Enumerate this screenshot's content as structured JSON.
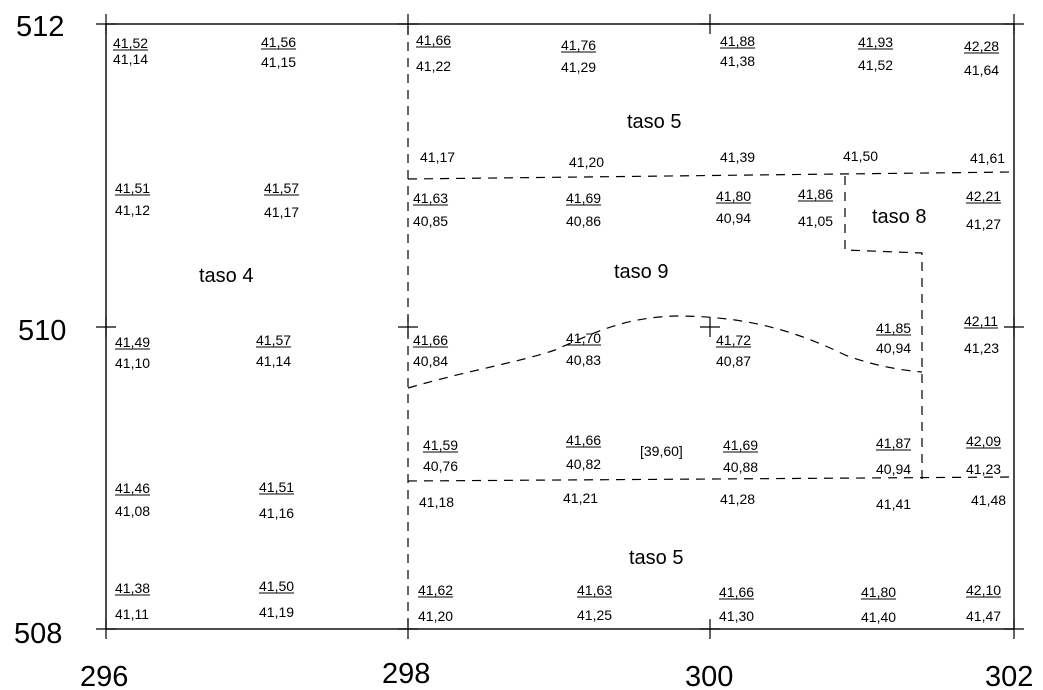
{
  "axes": {
    "y_labels": [
      "512",
      "510",
      "508"
    ],
    "x_labels": [
      "296",
      "298",
      "300",
      "302"
    ]
  },
  "zones": [
    "taso 5",
    "taso 4",
    "taso 9",
    "taso 8",
    "taso 5"
  ],
  "elevations": [
    {
      "top": "41,52",
      "bottom": "41,14"
    },
    {
      "top": "41,56",
      "bottom": "41,15"
    },
    {
      "top": "41,66",
      "bottom": "41,22"
    },
    {
      "top": "41,76",
      "bottom": "41,29"
    },
    {
      "top": "41,88",
      "bottom": "41,38"
    },
    {
      "top": "41,93",
      "bottom": "41,52"
    },
    {
      "top": "42,28",
      "bottom": "41,64"
    },
    {
      "top": "",
      "bottom": "41,17"
    },
    {
      "top": "",
      "bottom": "41,20"
    },
    {
      "top": "",
      "bottom": "41,39"
    },
    {
      "top": "",
      "bottom": "41,50"
    },
    {
      "top": "",
      "bottom": "41,61"
    },
    {
      "top": "41,51",
      "bottom": "41,12"
    },
    {
      "top": "41,57",
      "bottom": "41,17"
    },
    {
      "top": "41,63",
      "bottom": "40,85"
    },
    {
      "top": "41,69",
      "bottom": "40,86"
    },
    {
      "top": "41,80",
      "bottom": "40,94"
    },
    {
      "top": "41,86",
      "bottom": "41,05"
    },
    {
      "top": "42,21",
      "bottom": "41,27"
    },
    {
      "top": "41,49",
      "bottom": "41,10"
    },
    {
      "top": "41,57",
      "bottom": "41,14"
    },
    {
      "top": "41,66",
      "bottom": "40,84"
    },
    {
      "top": "41,70",
      "bottom": "40,83"
    },
    {
      "top": "41,72",
      "bottom": "40,87"
    },
    {
      "top": "41,85",
      "bottom": "40,94"
    },
    {
      "top": "42,11",
      "bottom": "41,23"
    },
    {
      "top": "41,59",
      "bottom": "40,76"
    },
    {
      "top": "41,66",
      "bottom": "40,82"
    },
    {
      "top": "41,69",
      "bottom": "40,88"
    },
    {
      "top": "41,87",
      "bottom": "40,94"
    },
    {
      "top": "42,09",
      "bottom": "41,23"
    },
    {
      "top": "41,46",
      "bottom": "41,08"
    },
    {
      "top": "41,51",
      "bottom": "41,16"
    },
    {
      "top": "",
      "bottom": "41,18"
    },
    {
      "top": "",
      "bottom": "41,21"
    },
    {
      "top": "",
      "bottom": "41,28"
    },
    {
      "top": "",
      "bottom": "41,41"
    },
    {
      "top": "",
      "bottom": "41,48"
    },
    {
      "top": "41,38",
      "bottom": "41,11"
    },
    {
      "top": "41,50",
      "bottom": "41,19"
    },
    {
      "top": "41,62",
      "bottom": "41,20"
    },
    {
      "top": "41,63",
      "bottom": "41,25"
    },
    {
      "top": "41,66",
      "bottom": "41,30"
    },
    {
      "top": "41,80",
      "bottom": "41,40"
    },
    {
      "top": "42,10",
      "bottom": "41,47"
    }
  ],
  "annotation": "[39,60]"
}
